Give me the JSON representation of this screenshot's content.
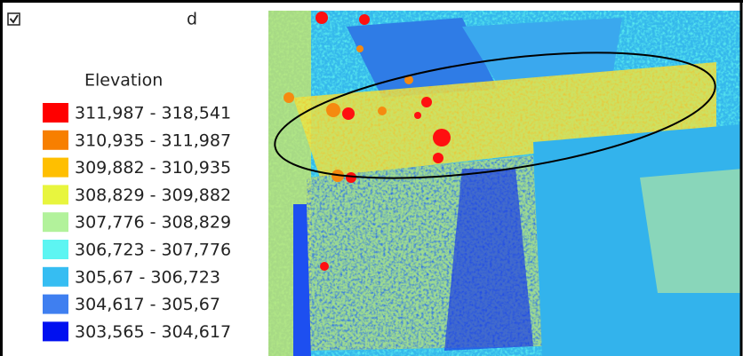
{
  "layer_name": "d",
  "legend": {
    "title": "Elevation",
    "items": [
      {
        "label": "311,987 - 318,541",
        "color": "#ff0000"
      },
      {
        "label": "310,935 - 311,987",
        "color": "#f77f00"
      },
      {
        "label": "309,882 - 310,935",
        "color": "#ffbf00"
      },
      {
        "label": "308,829 - 309,882",
        "color": "#e8f53e"
      },
      {
        "label": "307,776 - 308,829",
        "color": "#b2f29b"
      },
      {
        "label": "306,723 - 307,776",
        "color": "#5df5f2"
      },
      {
        "label": "305,67 - 306,723",
        "color": "#36bdf2"
      },
      {
        "label": "304,617 - 305,67",
        "color": "#3f7ff0"
      },
      {
        "label": "303,565 - 304,617",
        "color": "#0010f0"
      }
    ]
  }
}
